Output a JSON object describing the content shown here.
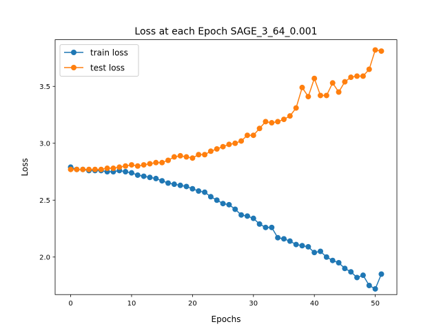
{
  "chart_data": {
    "type": "line",
    "title": "Loss at each Epoch SAGE_3_64_0.001",
    "xlabel": "Epochs",
    "ylabel": "Loss",
    "xlim": [
      -2.55,
      53.55
    ],
    "ylim": [
      1.67,
      3.91
    ],
    "xticks": [
      0,
      10,
      20,
      30,
      40,
      50
    ],
    "yticks": [
      2.0,
      2.5,
      3.0,
      3.5
    ],
    "ytick_labels": [
      "2.0",
      "2.5",
      "3.0",
      "3.5"
    ],
    "grid": false,
    "legend_position": "top-left",
    "series": [
      {
        "name": "train loss",
        "color": "#1f77b4",
        "x": [
          0,
          1,
          2,
          3,
          4,
          5,
          6,
          7,
          8,
          9,
          10,
          11,
          12,
          13,
          14,
          15,
          16,
          17,
          18,
          19,
          20,
          21,
          22,
          23,
          24,
          25,
          26,
          27,
          28,
          29,
          30,
          31,
          32,
          33,
          34,
          35,
          36,
          37,
          38,
          39,
          40,
          41,
          42,
          43,
          44,
          45,
          46,
          47,
          48,
          49,
          50,
          51
        ],
        "values": [
          2.79,
          2.77,
          2.77,
          2.76,
          2.76,
          2.76,
          2.75,
          2.75,
          2.76,
          2.75,
          2.74,
          2.72,
          2.71,
          2.7,
          2.69,
          2.67,
          2.65,
          2.64,
          2.63,
          2.62,
          2.6,
          2.58,
          2.57,
          2.53,
          2.5,
          2.47,
          2.46,
          2.42,
          2.37,
          2.36,
          2.34,
          2.29,
          2.26,
          2.26,
          2.17,
          2.16,
          2.14,
          2.11,
          2.1,
          2.09,
          2.04,
          2.05,
          2.0,
          1.97,
          1.95,
          1.9,
          1.87,
          1.82,
          1.84,
          1.75,
          1.72,
          1.85
        ]
      },
      {
        "name": "test loss",
        "color": "#ff7f0e",
        "x": [
          0,
          1,
          2,
          3,
          4,
          5,
          6,
          7,
          8,
          9,
          10,
          11,
          12,
          13,
          14,
          15,
          16,
          17,
          18,
          19,
          20,
          21,
          22,
          23,
          24,
          25,
          26,
          27,
          28,
          29,
          30,
          31,
          32,
          33,
          34,
          35,
          36,
          37,
          38,
          39,
          40,
          41,
          42,
          43,
          44,
          45,
          46,
          47,
          48,
          49,
          50,
          51
        ],
        "values": [
          2.77,
          2.77,
          2.77,
          2.77,
          2.77,
          2.77,
          2.78,
          2.78,
          2.79,
          2.8,
          2.81,
          2.8,
          2.81,
          2.82,
          2.83,
          2.83,
          2.85,
          2.88,
          2.89,
          2.88,
          2.87,
          2.9,
          2.9,
          2.93,
          2.95,
          2.97,
          2.99,
          3.0,
          3.02,
          3.07,
          3.07,
          3.13,
          3.19,
          3.18,
          3.19,
          3.21,
          3.24,
          3.31,
          3.49,
          3.41,
          3.57,
          3.42,
          3.42,
          3.53,
          3.45,
          3.54,
          3.58,
          3.59,
          3.59,
          3.65,
          3.82,
          3.81
        ]
      }
    ]
  }
}
